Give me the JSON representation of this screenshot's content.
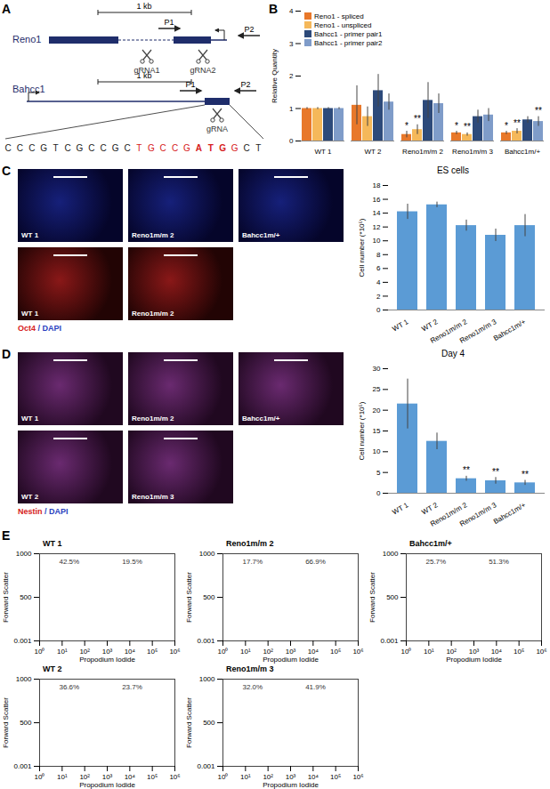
{
  "panel_labels": [
    "A",
    "B",
    "C",
    "D",
    "E"
  ],
  "diagram": {
    "genes": [
      {
        "name": "Reno1",
        "scale": "1 kb",
        "primers": [
          "P1",
          "P2"
        ],
        "guides": [
          "gRNA1",
          "gRNA2"
        ]
      },
      {
        "name": "Bahcc1",
        "scale": "1 kb",
        "primers": [
          "P1",
          "P2"
        ],
        "guides": [
          "gRNA"
        ]
      }
    ],
    "sequence": [
      {
        "text": "CCCGTCGCCGC",
        "style": "plain"
      },
      {
        "text": "TGCCG",
        "style": "red"
      },
      {
        "text": "ATG",
        "style": "red-bold"
      },
      {
        "text": "G",
        "style": "red"
      },
      {
        "text": "CT",
        "style": "plain"
      }
    ]
  },
  "chart_data": [
    {
      "type": "bar",
      "panel": "B",
      "ylabel": "Relative Quantity",
      "categories": [
        "WT 1",
        "WT 2",
        "Reno1m/m 2",
        "Reno1m/m 3",
        "Bahcc1m/+"
      ],
      "series": [
        {
          "name": "Reno1 - spliced",
          "color": "#e8782a",
          "values": [
            1,
            1.1,
            0.2,
            0.25,
            0.25
          ],
          "errors": [
            0.03,
            0.6,
            0.1,
            0.05,
            0.05
          ],
          "significance": [
            null,
            null,
            "*",
            "*",
            "*"
          ]
        },
        {
          "name": "Reno1 - unspliced",
          "color": "#f5b85a",
          "values": [
            1,
            0.75,
            0.35,
            0.2,
            0.3
          ],
          "errors": [
            0.03,
            0.3,
            0.15,
            0.05,
            0.08
          ],
          "significance": [
            null,
            null,
            "**",
            "**",
            "**"
          ]
        },
        {
          "name": "Bahcc1 - primer pair1",
          "color": "#2d4a7a",
          "values": [
            1,
            1.55,
            1.25,
            0.75,
            0.65
          ],
          "errors": [
            0.03,
            0.5,
            0.55,
            0.2,
            0.1
          ],
          "significance": [
            null,
            null,
            null,
            null,
            null
          ]
        },
        {
          "name": "Bahcc1 - primer pair2",
          "color": "#7f9cc9",
          "values": [
            1,
            1.2,
            1.15,
            0.8,
            0.6
          ],
          "errors": [
            0.03,
            0.25,
            0.3,
            0.2,
            0.15
          ],
          "significance": [
            null,
            null,
            null,
            null,
            "**"
          ]
        }
      ],
      "ylim": [
        0,
        4
      ],
      "yticks": [
        0,
        1,
        2,
        3,
        4
      ],
      "legend": "top-left"
    },
    {
      "type": "bar",
      "panel": "C",
      "title": "ES cells",
      "ylabel": "Cell number (*10⁵)",
      "categories": [
        "WT 1",
        "WT 2",
        "Reno1m/m 2",
        "Reno1m/m 3",
        "Bahcc1m/+"
      ],
      "values": [
        14.2,
        15.2,
        12.2,
        10.8,
        12.2
      ],
      "errors": [
        1.1,
        0.4,
        0.8,
        0.9,
        1.6
      ],
      "significance": [
        null,
        null,
        null,
        null,
        null
      ],
      "color": "#5b9bd5",
      "ylim": [
        0,
        18
      ],
      "yticks": [
        0,
        2,
        4,
        6,
        8,
        10,
        12,
        14,
        16,
        18
      ]
    },
    {
      "type": "bar",
      "panel": "D",
      "title": "Day 4",
      "ylabel": "Cell number (*10⁵)",
      "categories": [
        "WT 1",
        "WT 2",
        "Reno1m/m 2",
        "Reno1m/m 3",
        "Bahcc1m/+"
      ],
      "values": [
        21.5,
        12.5,
        3.5,
        3,
        2.5
      ],
      "errors": [
        6,
        2,
        0.6,
        0.8,
        0.6
      ],
      "significance": [
        null,
        null,
        "**",
        "**",
        "**"
      ],
      "color": "#5b9bd5",
      "ylim": [
        0,
        30
      ],
      "yticks": [
        0,
        5,
        10,
        15,
        20,
        25,
        30
      ]
    }
  ],
  "images": {
    "C": {
      "rows": [
        [
          "WT 1",
          "Reno1m/m 2",
          "Bahcc1m/+"
        ],
        [
          "WT 1",
          "Reno1m/m 2"
        ]
      ],
      "stain": [
        "Oct4",
        " / DAPI"
      ]
    },
    "D": {
      "rows": [
        [
          "WT 1",
          "Reno1m/m 2",
          "Bahcc1m/+"
        ],
        [
          "WT 2",
          "Reno1m/m 3"
        ]
      ],
      "stain": [
        "Nestin",
        " / DAPI"
      ]
    }
  },
  "flow_cytometry": {
    "xlabel": "Propodium Iodide",
    "ylabel": "Forward Scatter",
    "log": "x",
    "xlim": [
      1,
      1000000
    ],
    "xticks": [
      {
        "value": 1,
        "label": "10⁰"
      },
      {
        "value": 10,
        "label": "10¹"
      },
      {
        "value": 100,
        "label": "10²"
      },
      {
        "value": 1000,
        "label": "10³"
      },
      {
        "value": 10000,
        "label": "10⁴"
      },
      {
        "value": 100000,
        "label": "10⁵"
      },
      {
        "value": 1000000,
        "label": "10⁶"
      }
    ],
    "ylim": [
      0.001,
      1000
    ],
    "yticks": [
      0.001,
      500,
      1000
    ],
    "plots": [
      {
        "name": "WT 1",
        "gates": [
          "42.5%",
          "19.5%"
        ]
      },
      {
        "name": "Reno1m/m 2",
        "gates": [
          "17.7%",
          "66.9%"
        ]
      },
      {
        "name": "Bahcc1m/+",
        "gates": [
          "25.7%",
          "51.3%"
        ]
      },
      {
        "name": "WT 2",
        "gates": [
          "36.6%",
          "23.7%"
        ]
      },
      {
        "name": "Reno1m/m 3",
        "gates": [
          "32.0%",
          "41.9%"
        ]
      }
    ]
  }
}
